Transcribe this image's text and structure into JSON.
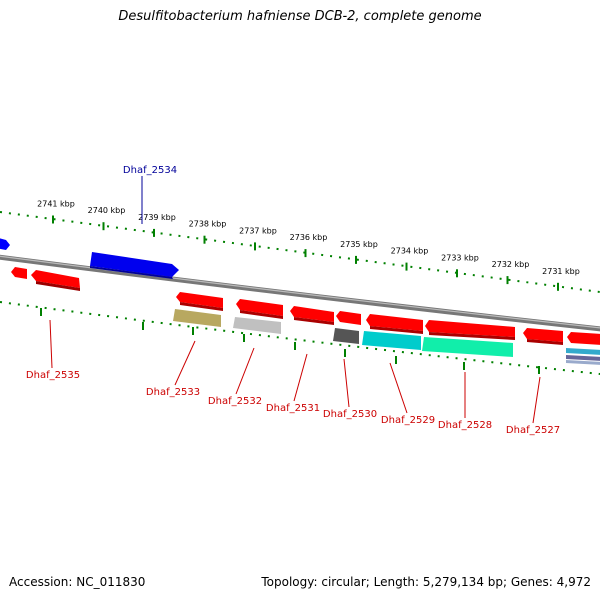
{
  "title": "Desulfitobacterium hafniense DCB-2, complete genome",
  "footer": {
    "accession": "Accession: NC_011830",
    "summary": "Topology: circular; Length: 5,279,134 bp; Genes: 4,972"
  },
  "colors": {
    "forward_gene": "#0000ff",
    "reverse_gene": "#ff0000",
    "backbone": "#888888",
    "tick": "#008000",
    "label_forward": "#000099",
    "label_reverse": "#cc0000"
  },
  "scale_ticks": [
    {
      "label": "2741 kbp",
      "kbp": 2741
    },
    {
      "label": "2740 kbp",
      "kbp": 2740
    },
    {
      "label": "2739 kbp",
      "kbp": 2739
    },
    {
      "label": "2738 kbp",
      "kbp": 2738
    },
    {
      "label": "2737 kbp",
      "kbp": 2737
    },
    {
      "label": "2736 kbp",
      "kbp": 2736
    },
    {
      "label": "2735 kbp",
      "kbp": 2735
    },
    {
      "label": "2734 kbp",
      "kbp": 2734
    },
    {
      "label": "2733 kbp",
      "kbp": 2733
    },
    {
      "label": "2732 kbp",
      "kbp": 2732
    },
    {
      "label": "2731 kbp",
      "kbp": 2731
    }
  ],
  "gene_labels": [
    {
      "name": "Dhaf_2534",
      "strand": "forward"
    },
    {
      "name": "Dhaf_2535",
      "strand": "reverse"
    },
    {
      "name": "Dhaf_2533",
      "strand": "reverse"
    },
    {
      "name": "Dhaf_2532",
      "strand": "reverse"
    },
    {
      "name": "Dhaf_2531",
      "strand": "reverse"
    },
    {
      "name": "Dhaf_2530",
      "strand": "reverse"
    },
    {
      "name": "Dhaf_2529",
      "strand": "reverse"
    },
    {
      "name": "Dhaf_2528",
      "strand": "reverse"
    },
    {
      "name": "Dhaf_2527",
      "strand": "reverse"
    }
  ]
}
